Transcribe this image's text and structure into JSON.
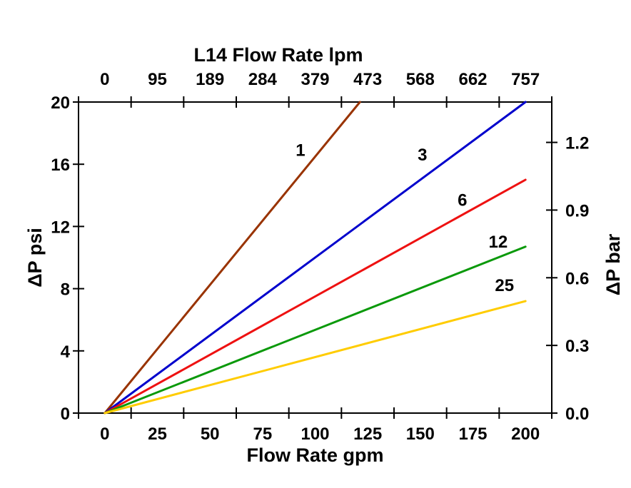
{
  "chart_data": {
    "type": "line",
    "title_top": "L14 Flow Rate lpm",
    "xlabel_bottom": "Flow Rate gpm",
    "ylabel_left": "ΔP psi",
    "ylabel_right": "ΔP bar",
    "axis_color": "#000000",
    "background": "#ffffff",
    "grid": false,
    "legend": "inline-labels-on-lines",
    "x_range_gpm": [
      -12.5,
      212.5
    ],
    "y_range_psi": [
      0,
      20
    ],
    "bar_per_psi": 0.068948,
    "x_bottom_tick_labels": [
      "0",
      "25",
      "50",
      "75",
      "100",
      "125",
      "150",
      "175",
      "200"
    ],
    "x_bottom_tick_values_gpm": [
      0,
      25,
      50,
      75,
      100,
      125,
      150,
      175,
      200
    ],
    "x_top_tick_labels": [
      "0",
      "95",
      "189",
      "284",
      "379",
      "473",
      "568",
      "662",
      "757"
    ],
    "x_top_tick_values_gpm": [
      0,
      25,
      50,
      75,
      100,
      125,
      150,
      175,
      200
    ],
    "x_tick_marks_gpm": [
      -12.5,
      12.5,
      37.5,
      62.5,
      87.5,
      112.5,
      137.5,
      162.5,
      187.5,
      212.5
    ],
    "y_left_tick_labels": [
      "0",
      "4",
      "8",
      "12",
      "16",
      "20"
    ],
    "y_left_tick_values_psi": [
      0,
      4,
      8,
      12,
      16,
      20
    ],
    "y_right_tick_labels": [
      "0.0",
      "0.3",
      "0.6",
      "0.9",
      "1.2"
    ],
    "y_right_tick_values_bar": [
      0.0,
      0.3,
      0.6,
      0.9,
      1.2
    ],
    "series": [
      {
        "label": "1",
        "color": "#993300",
        "points_gpm_psi": [
          [
            0,
            0
          ],
          [
            121.3,
            20
          ]
        ],
        "label_pos_gpm_psi": [
          93,
          16.9
        ],
        "note": "clipped at top axis"
      },
      {
        "label": "3",
        "color": "#0000CC",
        "points_gpm_psi": [
          [
            0,
            0
          ],
          [
            200,
            20
          ]
        ],
        "label_pos_gpm_psi": [
          151,
          16.6
        ]
      },
      {
        "label": "6",
        "color": "#EE1111",
        "points_gpm_psi": [
          [
            0,
            0
          ],
          [
            200,
            15
          ]
        ],
        "label_pos_gpm_psi": [
          170,
          13.7
        ]
      },
      {
        "label": "12",
        "color": "#0A990A",
        "points_gpm_psi": [
          [
            0,
            0
          ],
          [
            200,
            10.7
          ]
        ],
        "label_pos_gpm_psi": [
          187,
          11.0
        ]
      },
      {
        "label": "25",
        "color": "#FFCC00",
        "points_gpm_psi": [
          [
            0,
            0
          ],
          [
            200,
            7.2
          ]
        ],
        "label_pos_gpm_psi": [
          190,
          8.2
        ]
      }
    ]
  }
}
